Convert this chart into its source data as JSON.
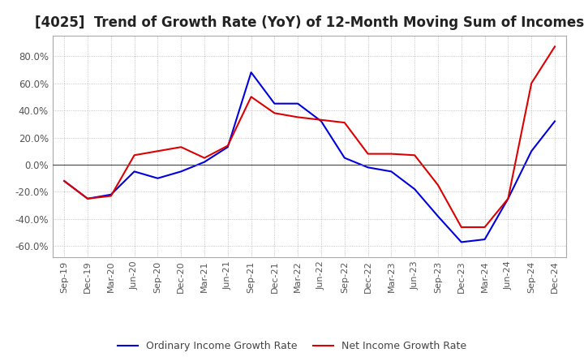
{
  "title": "[4025]  Trend of Growth Rate (YoY) of 12-Month Moving Sum of Incomes",
  "title_fontsize": 12,
  "ylim": [
    -0.68,
    0.95
  ],
  "yticks": [
    -0.6,
    -0.4,
    -0.2,
    0.0,
    0.2,
    0.4,
    0.6,
    0.8
  ],
  "background_color": "#ffffff",
  "grid_color": "#aaaaaa",
  "ordinary_color": "#0000dd",
  "net_color": "#dd0000",
  "legend_ordinary": "Ordinary Income Growth Rate",
  "legend_net": "Net Income Growth Rate",
  "dates": [
    "Sep-19",
    "Dec-19",
    "Mar-20",
    "Jun-20",
    "Sep-20",
    "Dec-20",
    "Mar-21",
    "Jun-21",
    "Sep-21",
    "Dec-21",
    "Mar-22",
    "Jun-22",
    "Sep-22",
    "Dec-22",
    "Mar-23",
    "Jun-23",
    "Sep-23",
    "Dec-23",
    "Mar-24",
    "Jun-24",
    "Sep-24",
    "Dec-24"
  ],
  "ordinary": [
    -0.12,
    -0.25,
    -0.22,
    -0.05,
    -0.1,
    -0.05,
    0.02,
    0.13,
    0.68,
    0.45,
    0.45,
    0.32,
    0.05,
    -0.02,
    -0.05,
    -0.18,
    -0.38,
    -0.57,
    -0.55,
    -0.25,
    0.1,
    0.32
  ],
  "net": [
    -0.12,
    -0.25,
    -0.23,
    0.07,
    0.1,
    0.13,
    0.05,
    0.14,
    0.5,
    0.38,
    0.35,
    0.33,
    0.31,
    0.08,
    0.08,
    0.07,
    -0.15,
    -0.46,
    -0.46,
    -0.25,
    0.6,
    0.87
  ]
}
